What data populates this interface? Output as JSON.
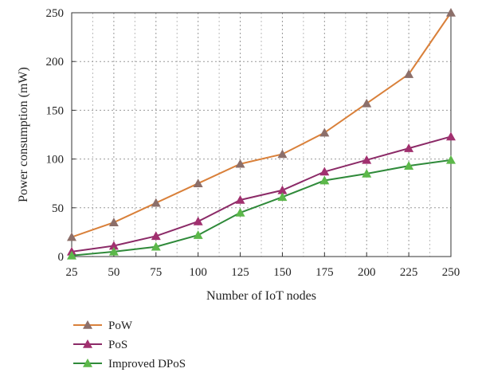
{
  "chart_data": {
    "type": "line",
    "xlabel": "Number of IoT nodes",
    "ylabel": "Power consumption (mW)",
    "x": [
      25,
      50,
      75,
      100,
      125,
      150,
      175,
      200,
      225,
      250
    ],
    "xlim": [
      25,
      250
    ],
    "ylim": [
      0,
      250
    ],
    "xticks": [
      "25",
      "50",
      "75",
      "100",
      "125",
      "150",
      "175",
      "200",
      "225",
      "250"
    ],
    "yticks": [
      "0",
      "50",
      "100",
      "150",
      "200",
      "250"
    ],
    "grid": true,
    "legend_position": "bottom-left, below plot",
    "marker": "triangle",
    "series": [
      {
        "name": "PoW",
        "color": "#d9803a",
        "marker_color": "#8c6f6a",
        "values": [
          20,
          35,
          55,
          75,
          95,
          105,
          127,
          157,
          187,
          250
        ]
      },
      {
        "name": "PoS",
        "color": "#8b2a67",
        "marker_color": "#a1306f",
        "values": [
          5,
          11,
          21,
          36,
          58,
          68,
          87,
          99,
          111,
          123
        ]
      },
      {
        "name": "Improved DPoS",
        "color": "#2f8a3a",
        "marker_color": "#5cb84a",
        "values": [
          1,
          5,
          10,
          22,
          45,
          61,
          78,
          85,
          93,
          99
        ]
      }
    ]
  }
}
